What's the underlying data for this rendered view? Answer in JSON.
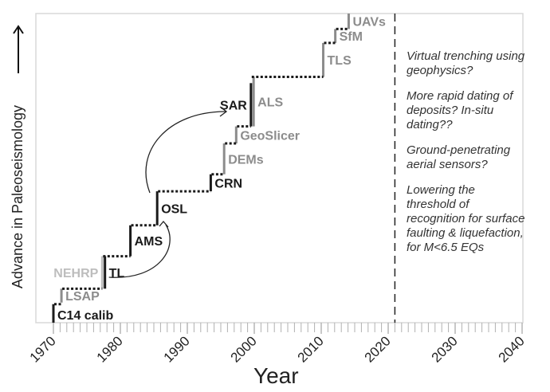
{
  "chart_data": {
    "type": "step",
    "title": "",
    "xlabel": "Year",
    "ylabel": "Advance in Paleoseismology",
    "ylabel_arrow": "→",
    "xlim": [
      1970,
      2040
    ],
    "x_ticks": [
      1970,
      1980,
      1990,
      2000,
      2010,
      2020,
      2030,
      2040
    ],
    "x_tick_labels": [
      "1970",
      "1980",
      "1990",
      "2000",
      "2010",
      "2020",
      "2030",
      "2040"
    ],
    "minor_tick_interval": 1,
    "grid": false,
    "present_line_year": 2021,
    "steps": [
      {
        "label": "C14 calib",
        "year": 1970,
        "level": 0,
        "rise": 1.2,
        "tone": "dark"
      },
      {
        "label": "LSAP",
        "year": 1971.2,
        "level": 1.3,
        "rise": 0.9,
        "tone": "gray"
      },
      {
        "label": "NEHRP",
        "year": 1977.3,
        "level": 2.2,
        "rise": 2.1,
        "tone": "light",
        "side": "left"
      },
      {
        "label": "TL",
        "year": 1977.7,
        "level": 2.2,
        "rise": 2.1,
        "tone": "dark"
      },
      {
        "label": "AMS",
        "year": 1981.5,
        "level": 4.3,
        "rise": 2.0,
        "tone": "dark"
      },
      {
        "label": "OSL",
        "year": 1985.5,
        "level": 6.3,
        "rise": 2.2,
        "tone": "dark"
      },
      {
        "label": "CRN",
        "year": 1993.5,
        "level": 8.5,
        "rise": 1.1,
        "tone": "dark"
      },
      {
        "label": "DEMs",
        "year": 1995.5,
        "level": 9.6,
        "rise": 2.0,
        "tone": "gray"
      },
      {
        "label": "GeoSlicer",
        "year": 1997.3,
        "level": 11.6,
        "rise": 1.1,
        "tone": "gray"
      },
      {
        "label": "SAR",
        "year": 1999.5,
        "level": 12.7,
        "rise": 2.8,
        "tone": "dark",
        "side": "left"
      },
      {
        "label": "ALS",
        "year": 1999.9,
        "level": 12.7,
        "rise": 3.2,
        "tone": "gray"
      },
      {
        "label": "TLS",
        "year": 2010.3,
        "level": 15.9,
        "rise": 2.2,
        "tone": "gray"
      },
      {
        "label": "SfM",
        "year": 2012.1,
        "level": 18.1,
        "rise": 0.9,
        "tone": "gray"
      },
      {
        "label": "UAVs",
        "year": 2014.1,
        "level": 19.0,
        "rise": 1.0,
        "tone": "gray"
      }
    ],
    "influence_arrows": [
      {
        "from": "TL",
        "to": "OSL"
      },
      {
        "from": "OSL",
        "to": "SAR"
      }
    ],
    "ymax_level": 20,
    "future_notes": [
      "Virtual trenching using geophysics?",
      "More rapid dating of deposits? In-situ dating??",
      "Ground-penetrating aerial sensors?",
      "Lowering the threshold of recognition for surface faulting & liquefaction, for M<6.5 EQs"
    ],
    "colors": {
      "dark": "#1a1a1a",
      "gray": "#8c8c8c",
      "light": "#bdbdbd",
      "frame": "#d9d9d9",
      "tick": "#b0b0b0"
    }
  }
}
